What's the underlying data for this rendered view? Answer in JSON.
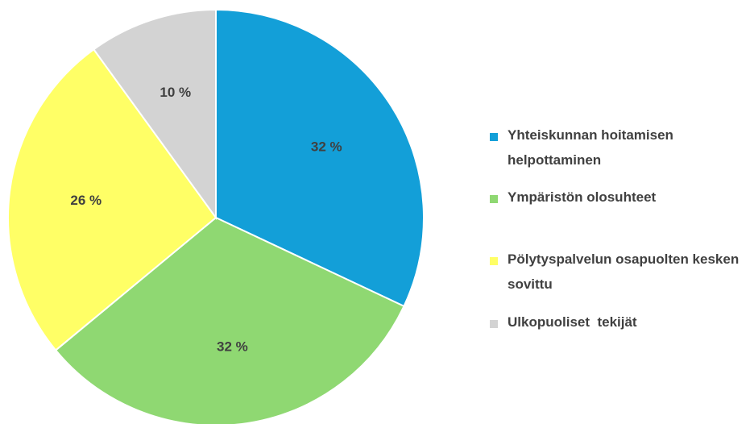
{
  "chart_data": {
    "type": "pie",
    "categories": [
      "Yhteiskunnan hoitamisen helpottaminen",
      "Ympäristön olosuhteet",
      "Pölytyspalvelun osapuolten kesken sovittu",
      "Ulkopuoliset  tekijät"
    ],
    "values": [
      32,
      32,
      26,
      10
    ],
    "value_labels": [
      "32 %",
      "32 %",
      "26 %",
      "10 %"
    ],
    "colors": [
      "#139fd8",
      "#8fd872",
      "#ffff66",
      "#d3d3d3"
    ],
    "legend": "right"
  }
}
